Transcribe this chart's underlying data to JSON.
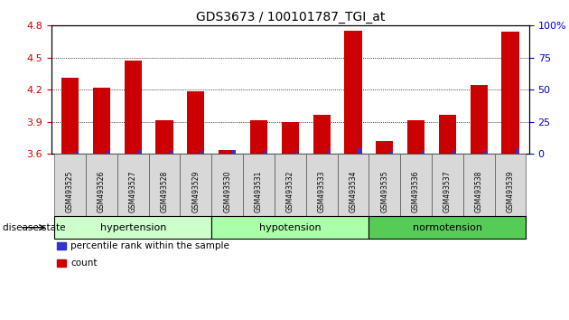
{
  "title": "GDS3673 / 100101787_TGI_at",
  "samples": [
    "GSM493525",
    "GSM493526",
    "GSM493527",
    "GSM493528",
    "GSM493529",
    "GSM493530",
    "GSM493531",
    "GSM493532",
    "GSM493533",
    "GSM493534",
    "GSM493535",
    "GSM493536",
    "GSM493537",
    "GSM493538",
    "GSM493539"
  ],
  "count_values": [
    4.31,
    4.22,
    4.47,
    3.91,
    4.18,
    3.63,
    3.91,
    3.9,
    3.96,
    4.75,
    3.72,
    3.91,
    3.96,
    4.24,
    4.74
  ],
  "percentile_values": [
    2,
    2,
    3,
    2,
    2,
    3,
    2,
    2,
    3,
    4,
    2,
    2,
    2,
    2,
    4
  ],
  "ylim_left": [
    3.6,
    4.8
  ],
  "ylim_right": [
    0,
    100
  ],
  "yticks_left": [
    3.6,
    3.9,
    4.2,
    4.5,
    4.8
  ],
  "yticks_right": [
    0,
    25,
    50,
    75,
    100
  ],
  "bar_color_red": "#cc0000",
  "bar_color_blue": "#3333cc",
  "groups": [
    {
      "label": "hypertension",
      "start": 0,
      "end": 5,
      "color": "#ccffcc"
    },
    {
      "label": "hypotension",
      "start": 5,
      "end": 10,
      "color": "#aaffaa"
    },
    {
      "label": "normotension",
      "start": 10,
      "end": 15,
      "color": "#55cc55"
    }
  ],
  "legend_items": [
    {
      "label": "count",
      "color": "#cc0000"
    },
    {
      "label": "percentile rank within the sample",
      "color": "#3333cc"
    }
  ],
  "disease_state_label": "disease state",
  "tick_color_left": "#cc0000",
  "tick_color_right": "#0000cc",
  "bar_width": 0.55,
  "xlim": [
    -0.6,
    14.6
  ]
}
